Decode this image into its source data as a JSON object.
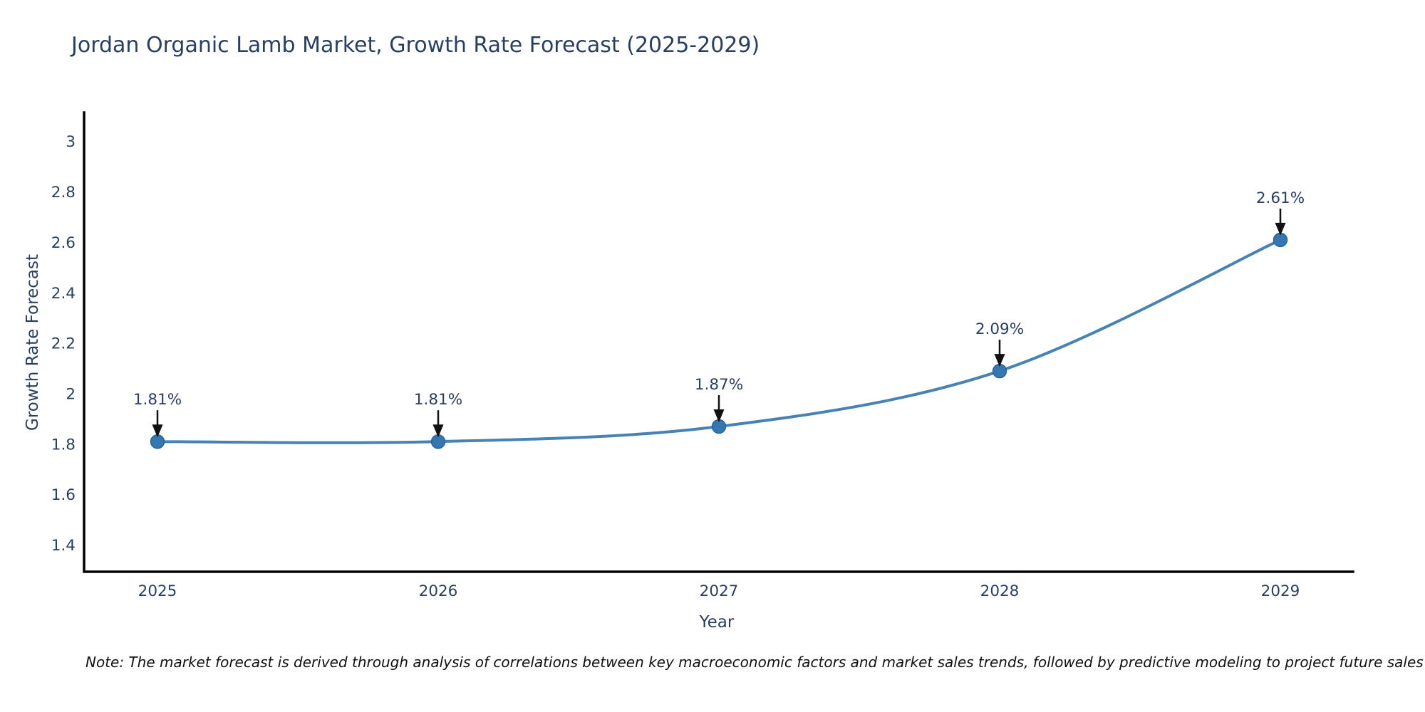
{
  "title": "Jordan Organic Lamb Market, Growth Rate Forecast (2025-2029)",
  "note": "Note: The market forecast is derived through analysis of correlations between key macroeconomic factors and market sales trends, followed by predictive modeling to project future sales",
  "colors": {
    "line": "#4682b4",
    "marker_fill": "#3577b1",
    "marker_edge": "#2a6399",
    "axis": "#000000",
    "tick_text": "#2a3f5f",
    "annotation_text": "#2a3f5f",
    "arrow": "#111111",
    "title_text": "#2a3f5f",
    "note_text": "#111111",
    "background": "#ffffff"
  },
  "chart_data": {
    "type": "line",
    "title": "Jordan Organic Lamb Market, Growth Rate Forecast (2025-2029)",
    "xlabel": "Year",
    "ylabel": "Growth Rate Forecast",
    "categories": [
      "2025",
      "2026",
      "2027",
      "2028",
      "2029"
    ],
    "values": [
      1.81,
      1.81,
      1.87,
      2.09,
      2.61
    ],
    "point_labels": [
      "1.81%",
      "1.81%",
      "1.87%",
      "2.09%",
      "2.61%"
    ],
    "yticks": [
      "1.4",
      "1.6",
      "1.8",
      "2",
      "2.2",
      "2.4",
      "2.6",
      "2.8",
      "3"
    ],
    "ytick_values": [
      1.4,
      1.6,
      1.8,
      2,
      2.2,
      2.4,
      2.6,
      2.8,
      3
    ],
    "ylim": [
      1.294,
      3.115
    ],
    "grid": false,
    "legend_position": "none",
    "line_shape": "spline",
    "markers": true,
    "annotations": "value labels with down arrows above each point"
  }
}
